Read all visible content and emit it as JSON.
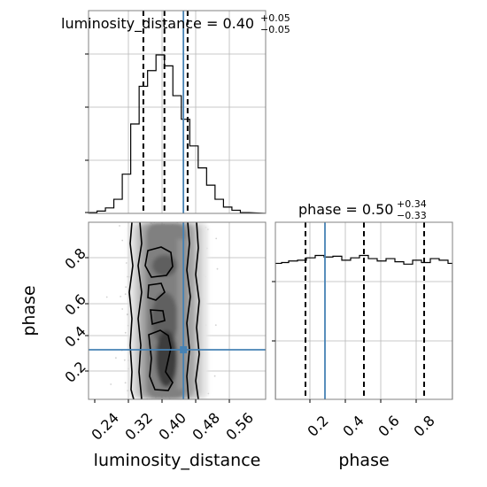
{
  "chart_data": [
    {
      "type": "step-histogram",
      "panel": "luminosity_distance marginal",
      "title": {
        "base": "luminosity_distance = 0.40",
        "plus": "+0.05",
        "minus": "−0.05"
      },
      "xlim": [
        0.22,
        0.64
      ],
      "bins": [
        0.22,
        0.24,
        0.26,
        0.28,
        0.3,
        0.32,
        0.34,
        0.36,
        0.38,
        0.4,
        0.42,
        0.44,
        0.46,
        0.48,
        0.5,
        0.52,
        0.54,
        0.56,
        0.58,
        0.6
      ],
      "counts": [
        0.5,
        1.5,
        3.5,
        9,
        25,
        57,
        81,
        91,
        101,
        94,
        75,
        60,
        43,
        29,
        18,
        9,
        4,
        2,
        0.5
      ],
      "quantiles": [
        0.35,
        0.4,
        0.455
      ],
      "truth": 0.445
    },
    {
      "type": "step-histogram",
      "panel": "phase marginal",
      "title": {
        "base": "phase = 0.50",
        "plus": "+0.34",
        "minus": "−0.33"
      },
      "xlim": [
        0.0,
        1.0
      ],
      "bins": [
        0.0,
        0.035,
        0.075,
        0.125,
        0.175,
        0.225,
        0.275,
        0.325,
        0.375,
        0.425,
        0.475,
        0.525,
        0.575,
        0.625,
        0.675,
        0.725,
        0.775,
        0.825,
        0.875,
        0.925,
        0.975,
        1.0
      ],
      "counts": [
        0.86,
        0.865,
        0.875,
        0.88,
        0.895,
        0.91,
        0.9,
        0.905,
        0.88,
        0.895,
        0.91,
        0.89,
        0.875,
        0.89,
        0.87,
        0.855,
        0.88,
        0.865,
        0.89,
        0.88,
        0.86
      ],
      "quantiles": [
        0.17,
        0.5,
        0.84
      ],
      "truth": 0.28
    },
    {
      "type": "2d-density",
      "panel": "luminosity_distance vs phase",
      "xlabel": "luminosity_distance",
      "ylabel": "phase",
      "xlim": [
        0.22,
        0.64
      ],
      "ylim": [
        0.0,
        1.0
      ],
      "xticks": [
        "0.24",
        "0.32",
        "0.40",
        "0.48",
        "0.56"
      ],
      "yticks": [
        "0.2",
        "0.4",
        "0.6",
        "0.8"
      ],
      "truth": {
        "x": 0.445,
        "y": 0.28
      }
    },
    {
      "type": "axis",
      "panel": "phase x-axis",
      "xlabel": "phase",
      "xticks": [
        "0.2",
        "0.4",
        "0.6",
        "0.8"
      ]
    }
  ],
  "colors": {
    "truth": "#4682b4",
    "grid": "#b8b8b8"
  }
}
